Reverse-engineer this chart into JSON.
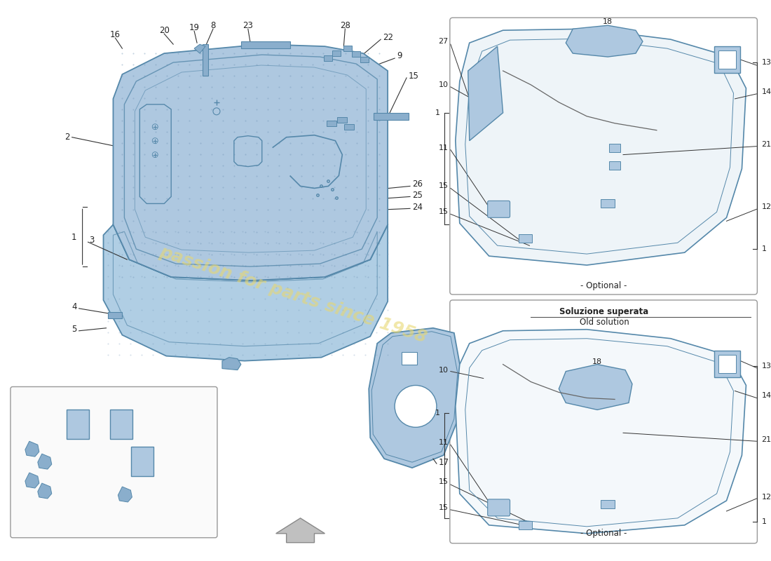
{
  "bg_color": "#ffffff",
  "line_color": "#333333",
  "blue_fill": "#aec8e0",
  "blue_fill_dark": "#8aaecc",
  "blue_fill_light": "#ccdeed",
  "blue_fill_side": "#b0cee4",
  "watermark_color": "#e8d870",
  "old_solution_label1": "Soluzione superata",
  "old_solution_label2": "Old solution",
  "optional_label": "- Optional -"
}
